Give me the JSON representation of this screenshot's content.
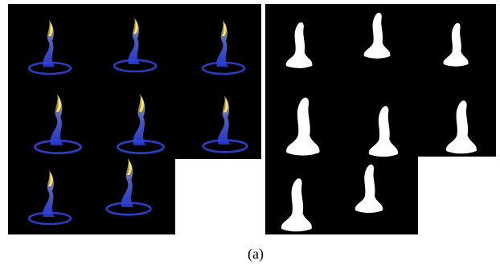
{
  "caption": "(a)"
}
